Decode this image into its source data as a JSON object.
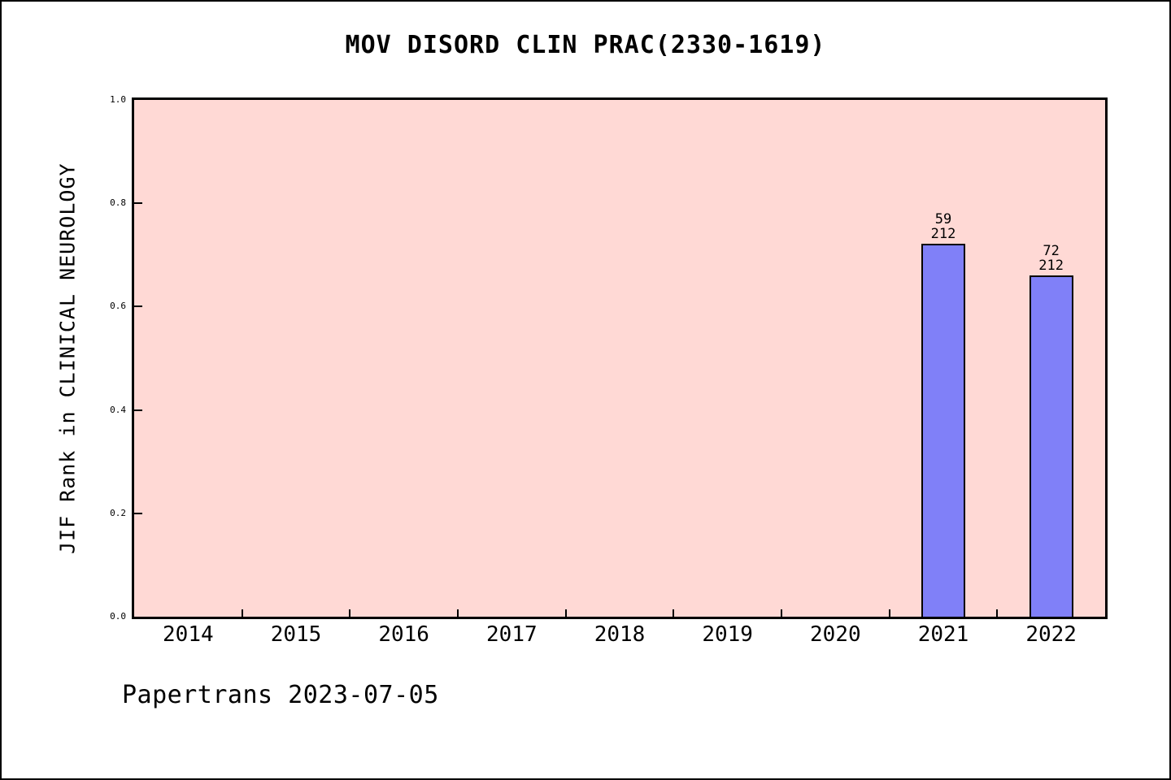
{
  "figure": {
    "background_color": "#ffffff",
    "border_color": "#000000"
  },
  "footer": {
    "text": "Papertrans 2023-07-05"
  },
  "chart_data": {
    "type": "bar",
    "title": "MOV DISORD CLIN PRAC(2330-1619)",
    "xlabel": "",
    "ylabel": "JIF Rank in CLINICAL NEUROLOGY",
    "categories": [
      "2014",
      "2015",
      "2016",
      "2017",
      "2018",
      "2019",
      "2020",
      "2021",
      "2022"
    ],
    "ytick_labels": [
      "0.0",
      "0.2",
      "0.4",
      "0.6",
      "0.8",
      "1.0"
    ],
    "ylim": [
      0.0,
      1.0
    ],
    "grid": false,
    "legend": false,
    "plot_bg_color": "#ffd9d5",
    "bar_color": "#8080f8",
    "bar_edge_color": "#000000",
    "bars": [
      {
        "category": "2021",
        "value": 0.722,
        "label_lines": [
          "59",
          "212"
        ]
      },
      {
        "category": "2022",
        "value": 0.66,
        "label_lines": [
          "72",
          "212"
        ]
      }
    ]
  }
}
